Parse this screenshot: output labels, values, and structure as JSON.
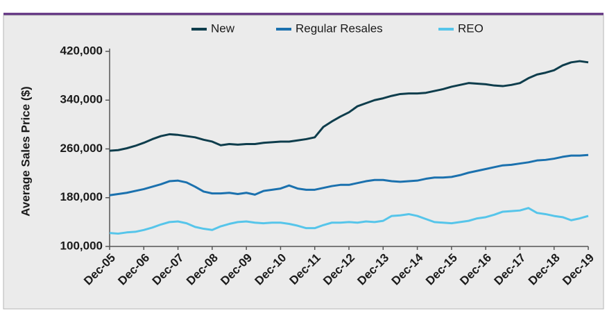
{
  "chart_data": {
    "type": "line",
    "y_label": "Average Sales Price ($)",
    "categories": [
      "Dec-05",
      null,
      null,
      null,
      "Dec-06",
      null,
      null,
      null,
      "Dec-07",
      null,
      null,
      null,
      "Dec-08",
      null,
      null,
      null,
      "Dec-09",
      null,
      null,
      null,
      "Dec-10",
      null,
      null,
      null,
      "Dec-11",
      null,
      null,
      null,
      "Dec-12",
      null,
      null,
      null,
      "Dec-13",
      null,
      null,
      null,
      "Dec-14",
      null,
      null,
      null,
      "Dec-15",
      null,
      null,
      null,
      "Dec-16",
      null,
      null,
      null,
      "Dec-17",
      null,
      null,
      null,
      "Dec-18",
      null,
      null,
      null,
      "Dec-19"
    ],
    "series": [
      {
        "name": "New",
        "color": "#0e3d4c",
        "values": [
          257,
          258,
          261,
          265,
          270,
          276,
          281,
          284,
          283,
          281,
          279,
          275,
          272,
          266,
          268,
          267,
          268,
          268,
          270,
          271,
          272,
          272,
          274,
          276,
          279,
          296,
          305,
          313,
          320,
          330,
          335,
          340,
          343,
          347,
          350,
          351,
          351,
          352,
          355,
          358,
          362,
          365,
          368,
          367,
          366,
          364,
          363,
          365,
          368,
          376,
          382,
          385,
          389,
          397,
          402,
          404,
          402
        ]
      },
      {
        "name": "Regular Resales",
        "color": "#1b71ae",
        "values": [
          184,
          186,
          188,
          191,
          194,
          198,
          202,
          207,
          208,
          205,
          198,
          190,
          187,
          187,
          188,
          186,
          188,
          185,
          191,
          193,
          195,
          200,
          195,
          193,
          193,
          196,
          199,
          201,
          201,
          204,
          207,
          209,
          209,
          207,
          206,
          207,
          208,
          211,
          213,
          213,
          214,
          217,
          221,
          224,
          227,
          230,
          233,
          234,
          236,
          238,
          241,
          242,
          244,
          247,
          249,
          249,
          250
        ]
      },
      {
        "name": "REO",
        "color": "#56c5ea",
        "values": [
          122,
          121,
          123,
          124,
          127,
          131,
          136,
          140,
          141,
          138,
          132,
          129,
          127,
          133,
          137,
          140,
          141,
          139,
          138,
          139,
          139,
          137,
          134,
          130,
          130,
          135,
          139,
          139,
          140,
          139,
          141,
          140,
          142,
          150,
          151,
          153,
          150,
          145,
          140,
          139,
          138,
          140,
          142,
          146,
          148,
          152,
          157,
          158,
          159,
          163,
          155,
          153,
          150,
          148,
          143,
          146,
          150
        ]
      }
    ],
    "value_scale": 1000,
    "ylim": [
      100000,
      420000
    ],
    "yticks": [
      {
        "value": 100000,
        "label": "100,000"
      },
      {
        "value": 180000,
        "label": "180,000"
      },
      {
        "value": 260000,
        "label": "260,000"
      },
      {
        "value": 340000,
        "label": "340,000"
      },
      {
        "value": 420000,
        "label": "420,000"
      }
    ],
    "legend": "top"
  }
}
